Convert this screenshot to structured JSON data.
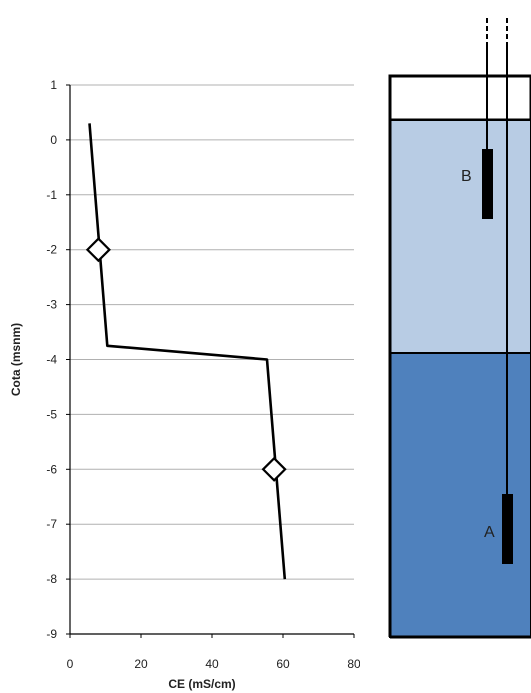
{
  "chart_data": {
    "type": "line",
    "title": "",
    "xlabel": "CE (mS/cm)",
    "ylabel": "Cota (msnm)",
    "xlim": [
      0,
      80
    ],
    "ylim": [
      -9,
      1
    ],
    "xticks": [
      0,
      20,
      40,
      60,
      80
    ],
    "yticks": [
      1,
      0,
      -1,
      -2,
      -3,
      -4,
      -5,
      -6,
      -7,
      -8,
      -9
    ],
    "grid": "horizontal",
    "series": [
      {
        "points": [
          {
            "x": 5.5,
            "y": 0.3
          },
          {
            "x": 10.5,
            "y": -3.75
          },
          {
            "x": 55.5,
            "y": -4.0
          },
          {
            "x": 60.5,
            "y": -8.0
          }
        ]
      }
    ],
    "markers": [
      {
        "x": 8,
        "y": -2,
        "shape": "diamond"
      },
      {
        "x": 57.5,
        "y": -6,
        "shape": "diamond"
      }
    ]
  },
  "diagram": {
    "sensors": [
      {
        "label": "B"
      },
      {
        "label": "A"
      }
    ],
    "colors": {
      "upper_layer": "#b8cce4",
      "lower_layer": "#4f81bd",
      "outline": "#000000",
      "sensor": "#000000"
    }
  }
}
